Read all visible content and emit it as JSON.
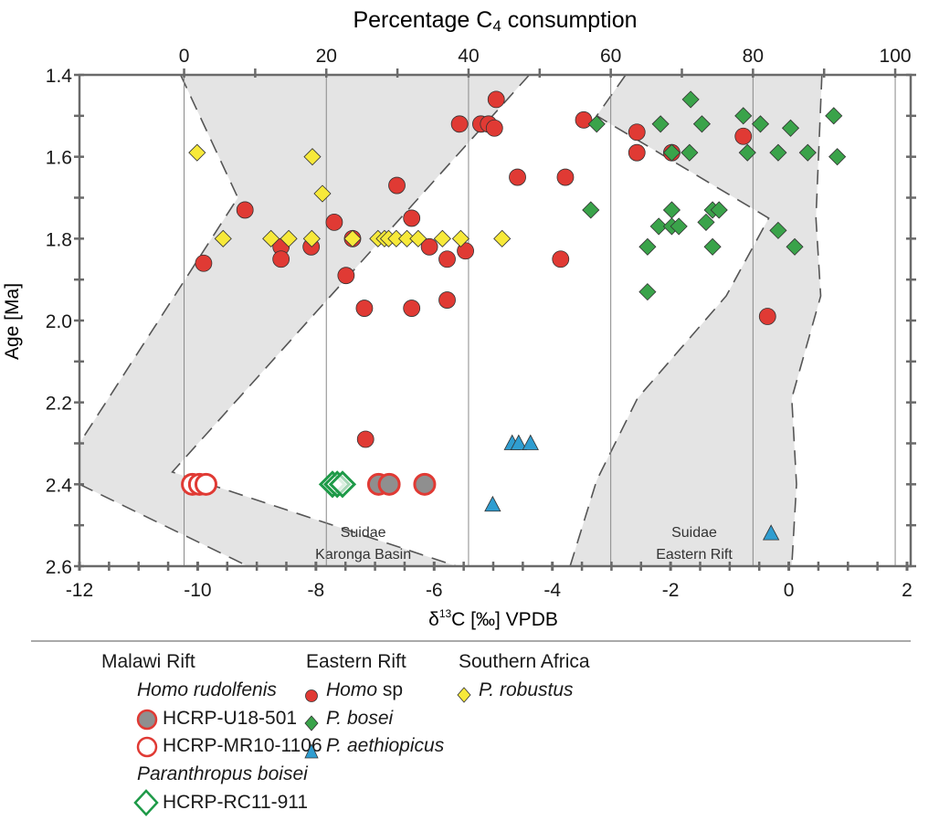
{
  "chart_data": {
    "type": "scatter",
    "top_axis": {
      "label_pre": "Percentage C",
      "label_sub": "4",
      "label_post": " consumption",
      "range": [
        0,
        100
      ],
      "ticks": [
        0,
        20,
        40,
        60,
        80,
        100
      ]
    },
    "xlabel": {
      "pre": "δ",
      "sup": "13",
      "post": "C [‰] VPDB"
    },
    "ylabel": "Age [Ma]",
    "xlim": [
      -12,
      2
    ],
    "ylim": [
      1.4,
      2.6
    ],
    "y_inverted": true,
    "xticks": [
      -12,
      -10,
      -8,
      -6,
      -4,
      -2,
      0,
      2
    ],
    "yticks": [
      1.4,
      1.6,
      1.8,
      2.0,
      2.2,
      2.4,
      2.6
    ],
    "grid": "vertical lines at top-axis ticks",
    "colors": {
      "red": "#e03a34",
      "green": "#3aa34a",
      "blue": "#2f9dd0",
      "yellow": "#f7e93a",
      "gray_fill": "#8f8f8f",
      "band": "#e4e4e4"
    },
    "bands": [
      {
        "label_line1": "Suidae",
        "label_line2": "Karonga Basin",
        "polygon": [
          [
            -10.29,
            1.4
          ],
          [
            -4.39,
            1.4
          ],
          [
            -10.43,
            2.37
          ],
          [
            -5.62,
            2.6
          ],
          [
            -9.15,
            2.6
          ],
          [
            -12,
            2.4
          ],
          [
            -12,
            2.3
          ],
          [
            -9.32,
            1.7
          ]
        ]
      },
      {
        "label_line1": "Suidae",
        "label_line2": "Eastern Rift",
        "polygon": [
          [
            -2.76,
            1.4
          ],
          [
            0.56,
            1.4
          ],
          [
            0.46,
            1.75
          ],
          [
            0.54,
            1.94
          ],
          [
            0.05,
            2.19
          ],
          [
            0.13,
            2.4
          ],
          [
            0.05,
            2.6
          ],
          [
            -3.7,
            2.6
          ],
          [
            -3.25,
            2.39
          ],
          [
            -2.56,
            2.19
          ],
          [
            -1.06,
            1.94
          ],
          [
            -0.34,
            1.75
          ],
          [
            -3.25,
            1.5
          ]
        ]
      }
    ],
    "series": [
      {
        "name": "Homo sp",
        "group": "Eastern Rift",
        "marker": "circle",
        "color": "#e03a34",
        "points": [
          [
            -9.9,
            1.86
          ],
          [
            -9.2,
            1.73
          ],
          [
            -8.59,
            1.82
          ],
          [
            -8.59,
            1.85
          ],
          [
            -8.08,
            1.82
          ],
          [
            -7.69,
            1.76
          ],
          [
            -7.49,
            1.89
          ],
          [
            -7.38,
            1.8
          ],
          [
            -7.18,
            1.97
          ],
          [
            -7.16,
            2.29
          ],
          [
            -6.63,
            1.67
          ],
          [
            -6.38,
            1.75
          ],
          [
            -6.38,
            1.97
          ],
          [
            -6.08,
            1.82
          ],
          [
            -5.78,
            1.85
          ],
          [
            -5.78,
            1.95
          ],
          [
            -5.57,
            1.52
          ],
          [
            -5.47,
            1.83
          ],
          [
            -5.21,
            1.52
          ],
          [
            -5.08,
            1.52
          ],
          [
            -4.98,
            1.53
          ],
          [
            -4.95,
            1.46
          ],
          [
            -4.59,
            1.65
          ],
          [
            -3.47,
            1.51
          ],
          [
            -2.57,
            1.54
          ],
          [
            -2.57,
            1.59
          ],
          [
            -1.98,
            1.59
          ],
          [
            -0.77,
            1.55
          ],
          [
            -3.78,
            1.65
          ],
          [
            -3.86,
            1.85
          ],
          [
            -0.36,
            1.99
          ]
        ]
      },
      {
        "name": "P. bosei",
        "group": "Eastern Rift",
        "marker": "diamond",
        "color": "#3aa34a",
        "points": [
          [
            -3.25,
            1.52
          ],
          [
            -1.66,
            1.46
          ],
          [
            -2.17,
            1.52
          ],
          [
            -1.47,
            1.52
          ],
          [
            -0.77,
            1.5
          ],
          [
            -0.48,
            1.52
          ],
          [
            0.03,
            1.53
          ],
          [
            0.76,
            1.5
          ],
          [
            -1.98,
            1.59
          ],
          [
            -1.68,
            1.59
          ],
          [
            -0.7,
            1.59
          ],
          [
            -0.18,
            1.59
          ],
          [
            0.32,
            1.59
          ],
          [
            0.82,
            1.6
          ],
          [
            -3.35,
            1.73
          ],
          [
            -1.98,
            1.73
          ],
          [
            -1.29,
            1.73
          ],
          [
            -1.18,
            1.73
          ],
          [
            -2.2,
            1.77
          ],
          [
            -1.98,
            1.77
          ],
          [
            -1.86,
            1.77
          ],
          [
            -1.4,
            1.76
          ],
          [
            -0.18,
            1.78
          ],
          [
            0.1,
            1.82
          ],
          [
            -2.39,
            1.82
          ],
          [
            -1.29,
            1.82
          ],
          [
            -2.39,
            1.93
          ]
        ]
      },
      {
        "name": "P. aethiopicus",
        "group": "Eastern Rift",
        "marker": "triangle",
        "color": "#2f9dd0",
        "points": [
          [
            -4.68,
            2.3
          ],
          [
            -4.57,
            2.3
          ],
          [
            -4.37,
            2.3
          ],
          [
            -5.01,
            2.45
          ],
          [
            -0.3,
            2.52
          ]
        ]
      },
      {
        "name": "P. robustus",
        "group": "Southern Africa",
        "marker": "diamond",
        "color": "#f7e93a",
        "points": [
          [
            -10.01,
            1.59
          ],
          [
            -8.06,
            1.6
          ],
          [
            -7.89,
            1.69
          ],
          [
            -9.57,
            1.8
          ],
          [
            -8.76,
            1.8
          ],
          [
            -8.46,
            1.8
          ],
          [
            -8.07,
            1.8
          ],
          [
            -7.38,
            1.8
          ],
          [
            -6.95,
            1.8
          ],
          [
            -6.84,
            1.8
          ],
          [
            -6.77,
            1.8
          ],
          [
            -6.64,
            1.8
          ],
          [
            -6.46,
            1.8
          ],
          [
            -6.27,
            1.8
          ],
          [
            -5.86,
            1.8
          ],
          [
            -5.55,
            1.8
          ],
          [
            -4.85,
            1.8
          ]
        ]
      },
      {
        "name": "HCRP-U18-501",
        "group": "Malawi Rift",
        "marker": "circle-filled-gray",
        "color": "#e03a34",
        "points": [
          [
            -6.94,
            2.4
          ],
          [
            -6.76,
            2.4
          ],
          [
            -6.16,
            2.4
          ]
        ]
      },
      {
        "name": "HCRP-MR10-1106",
        "group": "Malawi Rift",
        "marker": "circle-open",
        "color": "#e03a34",
        "points": [
          [
            -10.09,
            2.4
          ],
          [
            -9.97,
            2.4
          ],
          [
            -9.86,
            2.4
          ]
        ]
      },
      {
        "name": "HCRP-RC11-911",
        "group": "Malawi Rift",
        "marker": "diamond-open",
        "color": "#1e9a48",
        "points": [
          [
            -7.72,
            2.4
          ],
          [
            -7.64,
            2.4
          ],
          [
            -7.55,
            2.4
          ]
        ]
      }
    ]
  },
  "legend": {
    "malawi": {
      "heading": "Malawi Rift",
      "species1": "Homo rudolfenis",
      "item1": "HCRP-U18-501",
      "item2": "HCRP-MR10-1106",
      "species2": "Paranthropus boisei",
      "item3": "HCRP-RC11-911"
    },
    "eastern": {
      "heading": "Eastern Rift",
      "item1_it": "Homo",
      "item1_plain": " sp",
      "item2": "P. bosei",
      "item3": "P. aethiopicus"
    },
    "southern": {
      "heading": "Southern Africa",
      "item1": "P. robustus"
    }
  }
}
